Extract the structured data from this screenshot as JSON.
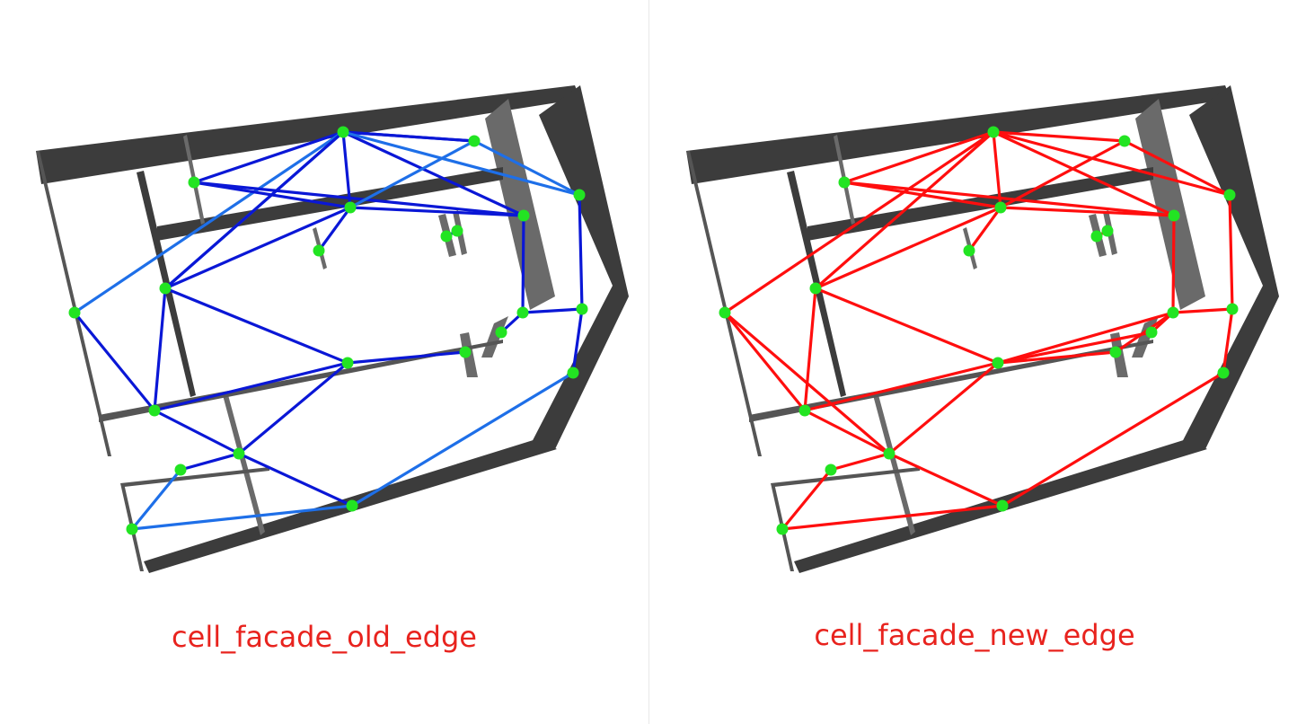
{
  "panels": [
    {
      "id": "old",
      "caption": "cell_facade_old_edge",
      "edge_color": "#0a17d6",
      "edge_color_light": "#1e6fe8"
    },
    {
      "id": "new",
      "caption": "cell_facade_new_edge",
      "edge_color": "#ff0e0e",
      "edge_color_light": "#ff0e0e"
    }
  ],
  "node_color": "#22e422",
  "wall_dark": "#3c3c3c",
  "wall_mid": "#6a6a6a"
}
